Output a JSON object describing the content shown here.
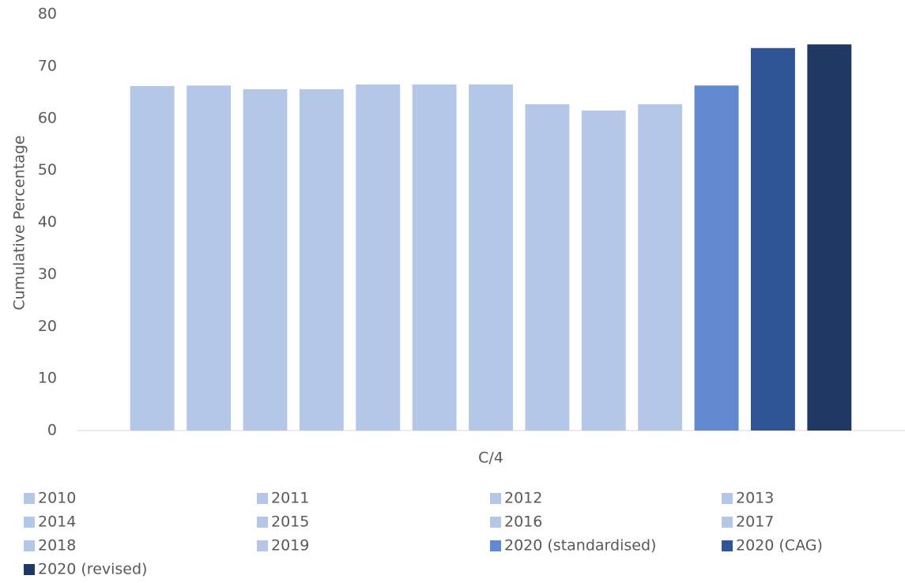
{
  "chart_data": {
    "type": "bar",
    "categories": [
      "C/4"
    ],
    "y_label": "Cumulative Percentage",
    "ylim": [
      0,
      80
    ],
    "yticks": [
      0,
      10,
      20,
      30,
      40,
      50,
      60,
      70,
      80
    ],
    "grid": false,
    "legend": "bottom",
    "series": [
      {
        "name": "2010",
        "color": "#b4c7e7",
        "values": [
          66.2
        ]
      },
      {
        "name": "2011",
        "color": "#b4c7e7",
        "values": [
          66.3
        ]
      },
      {
        "name": "2012",
        "color": "#b4c7e7",
        "values": [
          65.6
        ]
      },
      {
        "name": "2013",
        "color": "#b4c7e7",
        "values": [
          65.6
        ]
      },
      {
        "name": "2014",
        "color": "#b4c7e7",
        "values": [
          66.5
        ]
      },
      {
        "name": "2015",
        "color": "#b4c7e7",
        "values": [
          66.5
        ]
      },
      {
        "name": "2016",
        "color": "#b4c7e7",
        "values": [
          66.5
        ]
      },
      {
        "name": "2017",
        "color": "#b4c7e7",
        "values": [
          62.7
        ]
      },
      {
        "name": "2018",
        "color": "#b4c7e7",
        "values": [
          61.5
        ]
      },
      {
        "name": "2019",
        "color": "#b4c7e7",
        "values": [
          62.7
        ]
      },
      {
        "name": "2020 (standardised)",
        "color": "#6288cf",
        "values": [
          66.3
        ]
      },
      {
        "name": "2020 (CAG)",
        "color": "#2f5597",
        "values": [
          73.5
        ]
      },
      {
        "name": "2020 (revised)",
        "color": "#203864",
        "values": [
          74.2
        ]
      }
    ]
  }
}
